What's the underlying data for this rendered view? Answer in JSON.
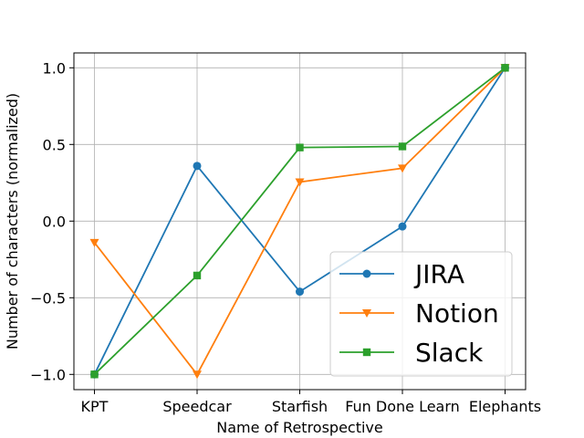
{
  "chart_data": {
    "type": "line",
    "categories": [
      "KPT",
      "Speedcar",
      "Starfish",
      "Fun Done Learn",
      "Elephants"
    ],
    "xlabel": "Name of Retrospective",
    "ylabel": "Number of characters (normalized)",
    "ylim": [
      -1.1,
      1.1
    ],
    "yticks": [
      -1.0,
      -0.5,
      0.0,
      0.5,
      1.0
    ],
    "ytick_labels": [
      "−1.0",
      "−0.5",
      "0.0",
      "0.5",
      "1.0"
    ],
    "grid": true,
    "legend_position": "lower-right",
    "series": [
      {
        "name": "JIRA",
        "color": "#1f77b4",
        "marker": "circle",
        "values": [
          -1.0,
          0.36,
          -0.46,
          -0.035,
          1.0
        ]
      },
      {
        "name": "Notion",
        "color": "#ff7f0e",
        "marker": "triangle-down",
        "values": [
          -0.14,
          -1.0,
          0.255,
          0.345,
          1.0
        ]
      },
      {
        "name": "Slack",
        "color": "#2ca02c",
        "marker": "square",
        "values": [
          -1.0,
          -0.355,
          0.48,
          0.487,
          1.0
        ]
      }
    ]
  }
}
